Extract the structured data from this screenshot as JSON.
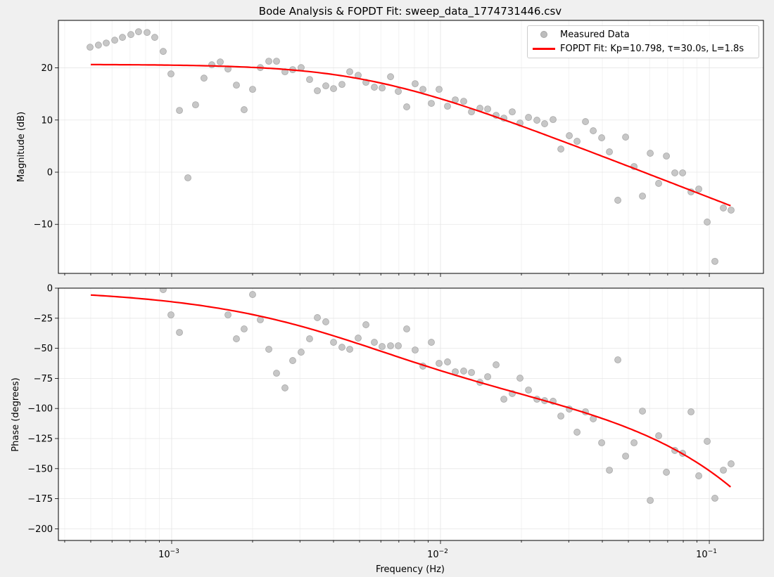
{
  "chart_data": [
    {
      "type": "scatter",
      "panel": "magnitude",
      "title": "Bode Analysis & FOPDT Fit: sweep_data_1774731446.csv",
      "xlabel": "",
      "ylabel": "Magnitude (dB)",
      "xscale": "log",
      "xlim": [
        0.000379,
        0.159
      ],
      "ylim": [
        -19.4,
        29.1
      ],
      "xticks": [
        {
          "value": 0.001,
          "base": "10",
          "exp": "−3"
        },
        {
          "value": 0.01,
          "base": "10",
          "exp": "−2"
        },
        {
          "value": 0.1,
          "base": "10",
          "exp": "−1"
        }
      ],
      "yticks": [
        {
          "value": -10,
          "label": "−10"
        },
        {
          "value": 0,
          "label": "0"
        },
        {
          "value": 10,
          "label": "10"
        },
        {
          "value": 20,
          "label": "20"
        }
      ],
      "grid": true,
      "legend_position": "top-right",
      "legend": [
        "Measured Data",
        "FOPDT Fit: Kp=10.798, τ=30.0s, L=1.8s"
      ]
    },
    {
      "type": "scatter",
      "panel": "phase",
      "xlabel": "Frequency (Hz)",
      "ylabel": "Phase (degrees)",
      "xscale": "log",
      "xlim": [
        0.000379,
        0.159
      ],
      "ylim": [
        -209.7,
        0
      ],
      "xticks": [
        {
          "value": 0.001,
          "base": "10",
          "exp": "−3"
        },
        {
          "value": 0.01,
          "base": "10",
          "exp": "−2"
        },
        {
          "value": 0.1,
          "base": "10",
          "exp": "−1"
        }
      ],
      "yticks": [
        {
          "value": 0,
          "label": "0"
        },
        {
          "value": -25,
          "label": "−25"
        },
        {
          "value": -50,
          "label": "−50"
        },
        {
          "value": -75,
          "label": "−75"
        },
        {
          "value": -100,
          "label": "−100"
        },
        {
          "value": -125,
          "label": "−125"
        },
        {
          "value": -150,
          "label": "−150"
        },
        {
          "value": -175,
          "label": "−175"
        },
        {
          "value": -200,
          "label": "−200"
        }
      ],
      "grid": true
    }
  ],
  "measured": {
    "freq": [
      0.000497,
      0.000534,
      0.000571,
      0.000614,
      0.000656,
      0.000705,
      0.000753,
      0.00081,
      0.000865,
      0.00093,
      0.000994,
      0.001069,
      0.001149,
      0.001227,
      0.001319,
      0.00141,
      0.001516,
      0.00162,
      0.001741,
      0.00186,
      0.002,
      0.002137,
      0.002298,
      0.002455,
      0.002639,
      0.00282,
      0.003031,
      0.003259,
      0.003483,
      0.003744,
      0.004001,
      0.0043,
      0.004596,
      0.00494,
      0.00528,
      0.005675,
      0.006065,
      0.00652,
      0.006967,
      0.007487,
      0.008048,
      0.008603,
      0.009247,
      0.00988,
      0.01062,
      0.01135,
      0.0122,
      0.01304,
      0.01402,
      0.01498,
      0.0161,
      0.01721,
      0.01849,
      0.01976,
      0.02125,
      0.02284,
      0.0244,
      0.02623,
      0.02804,
      0.03014,
      0.03221,
      0.03462,
      0.037,
      0.03977,
      0.0425,
      0.04568,
      0.04882,
      0.05248,
      0.05641,
      0.06029,
      0.0648,
      0.06925,
      0.07443,
      0.07955,
      0.0855,
      0.09136,
      0.0982,
      0.1049,
      0.1128,
      0.1205
    ],
    "magnitude_db": [
      23.96,
      24.36,
      24.76,
      25.3,
      25.84,
      26.38,
      26.92,
      26.78,
      25.84,
      23.15,
      18.84,
      11.84,
      -1.08,
      12.92,
      18.03,
      20.59,
      21.13,
      19.78,
      16.69,
      11.98,
      15.88,
      20.05,
      21.27,
      21.27,
      19.25,
      19.65,
      20.05,
      17.77,
      15.61,
      16.55,
      16.02,
      16.82,
      19.25,
      18.57,
      17.23,
      16.29,
      16.15,
      18.3,
      15.48,
      12.52,
      16.96,
      15.88,
      13.19,
      15.88,
      12.65,
      13.86,
      13.59,
      11.57,
      12.25,
      12.11,
      10.9,
      10.36,
      11.57,
      9.42,
      10.5,
      9.96,
      9.29,
      10.09,
      4.44,
      7.0,
      5.92,
      9.69,
      7.94,
      6.59,
      3.9,
      -5.38,
      6.73,
      1.08,
      -4.58,
      3.63,
      -2.15,
      3.1,
      -0.13,
      -0.13,
      -3.77,
      -3.23,
      -9.56,
      -17.09,
      -6.86,
      -7.27
    ],
    "phase_deg": [
      null,
      null,
      null,
      null,
      null,
      null,
      null,
      null,
      null,
      -1.2,
      -22.2,
      -36.8,
      null,
      null,
      null,
      null,
      null,
      -22.2,
      -42.1,
      -33.9,
      -5.3,
      -26.3,
      -50.8,
      -70.7,
      -82.9,
      -60.2,
      -53.2,
      -42.1,
      -24.5,
      -28.0,
      -45.0,
      -49.1,
      -50.8,
      -41.5,
      -30.4,
      -45.0,
      -48.5,
      -47.9,
      -47.9,
      -33.9,
      -51.4,
      -64.8,
      -45.0,
      -62.5,
      -61.3,
      -69.5,
      -68.9,
      -70.1,
      -78.3,
      -73.6,
      -63.7,
      -92.3,
      -87.6,
      -74.8,
      -84.7,
      -92.3,
      -93.5,
      -94.0,
      -106.3,
      -100.5,
      -119.7,
      -102.8,
      -108.6,
      -128.5,
      -151.3,
      -59.6,
      -139.6,
      -128.5,
      -102.2,
      -176.4,
      -122.7,
      -153.0,
      -134.9,
      -137.3,
      -102.8,
      -156.0,
      -127.3,
      -174.6,
      -151.3,
      -146.0
    ]
  },
  "fit": {
    "Kp": 10.798,
    "tau": 30.0,
    "L": 1.8,
    "f_start": 0.0005,
    "f_end": 0.12
  },
  "colors": {
    "measured": "#bdbdbd",
    "fit": "#ff0000",
    "grid": "#e6e6e6",
    "background": "#f0f0f0"
  }
}
